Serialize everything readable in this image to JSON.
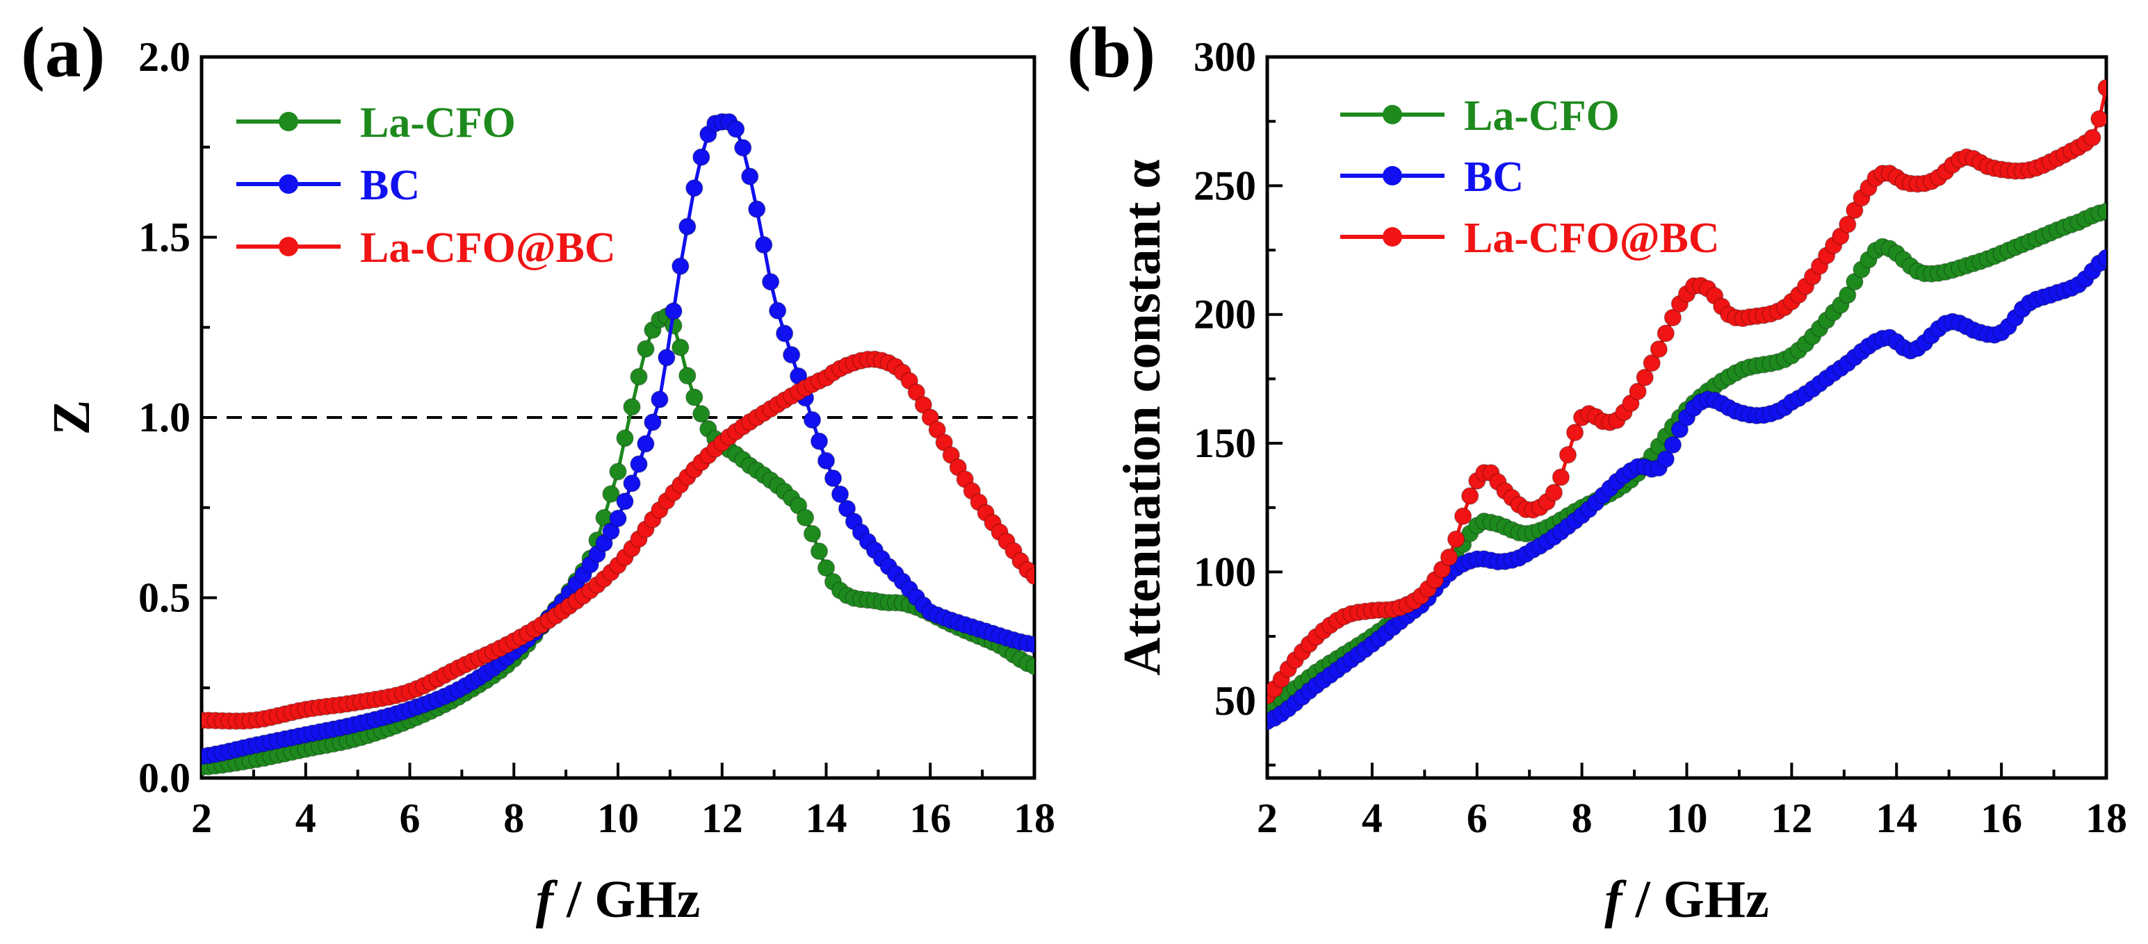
{
  "colors": {
    "green": "#1e8a1e",
    "blue": "#1010f0",
    "red": "#f01414"
  },
  "chart_data": [
    {
      "panel": "(a)",
      "type": "line",
      "xlabel_italic": "f",
      "xlabel_rest": " / GHz",
      "ylabel": "Z",
      "xlim": [
        2,
        18
      ],
      "ylim": [
        0,
        2.0
      ],
      "xticks": [
        2,
        4,
        6,
        8,
        10,
        12,
        14,
        16,
        18
      ],
      "yticks": [
        0.0,
        0.5,
        1.0,
        1.5,
        2.0
      ],
      "ytick_labels": [
        "0.0",
        "0.5",
        "1.0",
        "1.5",
        "2.0"
      ],
      "reference_line": {
        "y": 1.0,
        "style": "dashed"
      },
      "legend_position": "top-left",
      "series": [
        {
          "name": "La-CFO",
          "color": "green",
          "x": [
            2,
            3,
            4,
            5,
            6,
            7,
            8,
            9,
            9.5,
            10,
            10.3,
            10.6,
            10.9,
            11.1,
            11.4,
            11.8,
            12.5,
            13.5,
            14.2,
            15,
            15.6,
            16.5,
            17.3,
            18
          ],
          "y": [
            0.03,
            0.05,
            0.08,
            0.11,
            0.16,
            0.23,
            0.33,
            0.5,
            0.62,
            0.85,
            1.05,
            1.22,
            1.28,
            1.24,
            1.08,
            0.95,
            0.87,
            0.75,
            0.53,
            0.49,
            0.48,
            0.42,
            0.37,
            0.31
          ]
        },
        {
          "name": "BC",
          "color": "blue",
          "x": [
            2,
            3,
            4,
            5,
            6,
            7,
            8,
            9,
            10,
            10.8,
            11.3,
            11.7,
            12,
            12.3,
            12.6,
            13,
            13.5,
            14,
            14.5,
            15,
            15.5,
            16,
            17,
            18
          ],
          "y": [
            0.06,
            0.09,
            0.12,
            0.15,
            0.19,
            0.25,
            0.35,
            0.5,
            0.72,
            1.05,
            1.5,
            1.77,
            1.82,
            1.79,
            1.62,
            1.33,
            1.1,
            0.88,
            0.72,
            0.62,
            0.54,
            0.46,
            0.41,
            0.37
          ]
        },
        {
          "name": "La-CFO@BC",
          "color": "red",
          "x": [
            2,
            3,
            4,
            5,
            6,
            7,
            8,
            9,
            10,
            11,
            12,
            13,
            14,
            14.5,
            15,
            15.5,
            16,
            16.5,
            17,
            17.5,
            18
          ],
          "y": [
            0.16,
            0.16,
            0.19,
            0.21,
            0.24,
            0.31,
            0.38,
            0.47,
            0.59,
            0.78,
            0.93,
            1.03,
            1.11,
            1.15,
            1.16,
            1.12,
            1.0,
            0.87,
            0.75,
            0.65,
            0.56
          ]
        }
      ]
    },
    {
      "panel": "(b)",
      "type": "line",
      "xlabel_italic": "f",
      "xlabel_rest": " / GHz",
      "ylabel": "Attenuation constant α",
      "xlim": [
        2,
        18
      ],
      "ylim": [
        20,
        300
      ],
      "xticks": [
        2,
        4,
        6,
        8,
        10,
        12,
        14,
        16,
        18
      ],
      "yticks": [
        50,
        100,
        150,
        200,
        250,
        300
      ],
      "ytick_labels": [
        "50",
        "100",
        "150",
        "200",
        "250",
        "300"
      ],
      "legend_position": "top-left",
      "series": [
        {
          "name": "La-CFO",
          "color": "green",
          "x": [
            2,
            3,
            4,
            5,
            5.5,
            6,
            6.3,
            7,
            8,
            9,
            10,
            11,
            12,
            13,
            13.5,
            13.8,
            14.5,
            15.5,
            16.5,
            17.5,
            18
          ],
          "y": [
            48,
            62,
            75,
            90,
            103,
            118,
            119,
            115,
            125,
            137,
            163,
            178,
            184,
            205,
            222,
            226,
            216,
            220,
            228,
            236,
            240
          ]
        },
        {
          "name": "BC",
          "color": "blue",
          "x": [
            2,
            3,
            4,
            5,
            5.5,
            6,
            6.5,
            7,
            8,
            9,
            9.5,
            10,
            10.4,
            11,
            11.5,
            12,
            13,
            13.8,
            14.3,
            15,
            15.6,
            16,
            16.5,
            17,
            17.5,
            18
          ],
          "y": [
            42,
            57,
            72,
            88,
            100,
            105,
            104,
            108,
            122,
            140,
            141,
            160,
            167,
            162,
            161,
            166,
            180,
            191,
            186,
            197,
            193,
            193,
            204,
            208,
            212,
            222
          ]
        },
        {
          "name": "La-CFO@BC",
          "color": "red",
          "x": [
            2,
            2.5,
            3,
            3.5,
            4,
            4.5,
            5,
            5.5,
            5.9,
            6.2,
            6.5,
            7,
            7.5,
            8,
            8.5,
            8.8,
            9.3,
            10,
            10.4,
            10.8,
            11.2,
            12,
            13,
            13.5,
            13.8,
            14.2,
            14.7,
            15.3,
            15.8,
            16.5,
            17.2,
            17.8,
            18
          ],
          "y": [
            52,
            65,
            76,
            83,
            85,
            86,
            92,
            107,
            131,
            139,
            132,
            124,
            132,
            160,
            158,
            162,
            180,
            208,
            210,
            200,
            199,
            205,
            232,
            250,
            255,
            251,
            252,
            261,
            257,
            256,
            262,
            270,
            288
          ]
        }
      ]
    }
  ]
}
